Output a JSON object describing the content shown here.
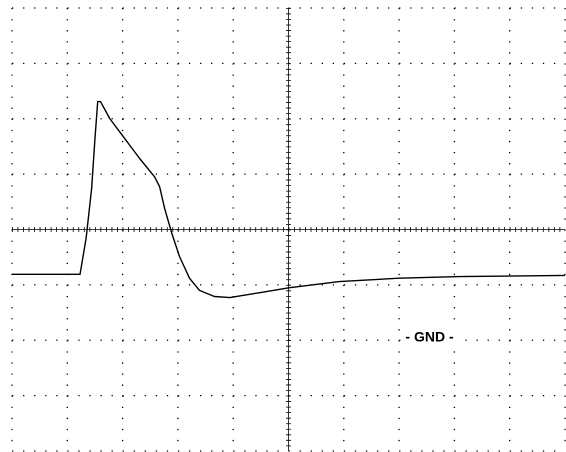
{
  "chart_data": {
    "type": "line",
    "xlim": [
      0,
      10
    ],
    "ylim": [
      -4,
      4
    ],
    "xticks": [
      0,
      1,
      2,
      3,
      4,
      5,
      6,
      7,
      8,
      9,
      10
    ],
    "yticks": [
      -4,
      -3,
      -2,
      -1,
      0,
      1,
      2,
      3,
      4
    ],
    "grid": true,
    "color": "#000000",
    "x": [
      0,
      1.23,
      1.34,
      1.44,
      1.5,
      1.55,
      1.6,
      1.77,
      2.04,
      2.31,
      2.58,
      2.67,
      2.76,
      2.89,
      3.03,
      3.21,
      3.39,
      3.66,
      3.94,
      4.48,
      5.02,
      5.92,
      7.0,
      8.09,
      10
    ],
    "values": [
      -0.81,
      -0.81,
      -0.16,
      0.74,
      1.64,
      2.31,
      2.31,
      2.0,
      1.64,
      1.28,
      0.95,
      0.77,
      0.38,
      -0.07,
      -0.49,
      -0.88,
      -1.1,
      -1.21,
      -1.23,
      -1.14,
      -1.05,
      -0.94,
      -0.88,
      -0.85,
      -0.83
    ],
    "annotations": [
      {
        "text": "- GND -",
        "x": 7.55,
        "y": -1.96
      }
    ]
  }
}
